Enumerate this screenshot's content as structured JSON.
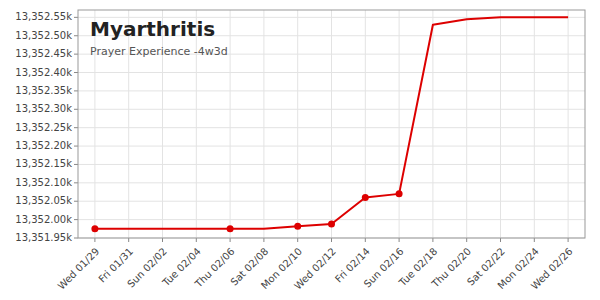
{
  "chart_data": {
    "type": "line",
    "title": "Myarthritis",
    "subtitle": "Prayer Experience -4w3d",
    "categories": [
      "Wed 01/29",
      "Fri 01/31",
      "Sun 02/02",
      "Tue 02/04",
      "Thu 02/06",
      "Sat 02/08",
      "Mon 02/10",
      "Wed 02/12",
      "Fri 02/14",
      "Sun 02/16",
      "Tue 02/18",
      "Thu 02/20",
      "Sat 02/22",
      "Mon 02/24",
      "Wed 02/26"
    ],
    "series": [
      {
        "type": "line",
        "color": "#dd0000",
        "values": [
          13351975,
          13351975,
          13351975,
          13351975,
          13351975,
          13351975,
          13351982,
          13351988,
          13352060,
          13352070,
          13352530,
          13352545,
          13352550,
          13352550,
          13352550
        ]
      },
      {
        "type": "scatter",
        "color": "#dd0000",
        "marker": "circle",
        "values": [
          13351975,
          null,
          null,
          null,
          13351975,
          null,
          13351982,
          13351988,
          13352060,
          13352070,
          null,
          null,
          null,
          null,
          null
        ]
      }
    ],
    "ylim": [
      13351950,
      13352570
    ],
    "yticks": [
      {
        "value": 13351950,
        "label": "13,351.95k"
      },
      {
        "value": 13352000,
        "label": "13,352.00k"
      },
      {
        "value": 13352050,
        "label": "13,352.05k"
      },
      {
        "value": 13352100,
        "label": "13,352.10k"
      },
      {
        "value": 13352150,
        "label": "13,352.15k"
      },
      {
        "value": 13352200,
        "label": "13,352.20k"
      },
      {
        "value": 13352250,
        "label": "13,352.25k"
      },
      {
        "value": 13352300,
        "label": "13,352.30k"
      },
      {
        "value": 13352350,
        "label": "13,352.35k"
      },
      {
        "value": 13352400,
        "label": "13,352.40k"
      },
      {
        "value": 13352450,
        "label": "13,352.45k"
      },
      {
        "value": 13352500,
        "label": "13,352.50k"
      },
      {
        "value": 13352550,
        "label": "13,352.55k"
      }
    ],
    "grid": true
  }
}
